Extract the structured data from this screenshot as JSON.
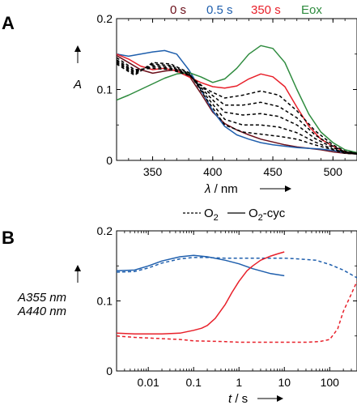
{
  "colors": {
    "dark_red": "#6b0f1a",
    "blue": "#1f5fad",
    "red": "#e8202a",
    "green": "#2e8b3e",
    "black": "#000000"
  },
  "chart_data": [
    {
      "panel": "A",
      "type": "line",
      "xlabel_symbol": "λ",
      "xlabel_unit": "/ nm",
      "ylabel": "A",
      "xlim": [
        320,
        520
      ],
      "ylim": [
        0,
        0.2
      ],
      "xticks": [
        350,
        400,
        450,
        500
      ],
      "yticks": [
        0,
        0.1,
        0.2
      ],
      "legend": [
        "0 s",
        "0.5 s",
        "350 s",
        "Eox"
      ],
      "series": [
        {
          "name": "0 s",
          "color": "#6b0f1a",
          "style": "solid",
          "x": [
            320,
            330,
            340,
            350,
            360,
            370,
            380,
            390,
            400,
            410,
            420,
            430,
            440,
            450,
            460,
            470,
            480,
            490,
            500,
            510,
            520
          ],
          "y": [
            0.148,
            0.138,
            0.128,
            0.123,
            0.126,
            0.128,
            0.12,
            0.095,
            0.068,
            0.052,
            0.043,
            0.036,
            0.03,
            0.026,
            0.022,
            0.019,
            0.017,
            0.015,
            0.012,
            0.01,
            0.009
          ]
        },
        {
          "name": "0.5 s",
          "color": "#1f5fad",
          "style": "solid",
          "x": [
            320,
            330,
            340,
            350,
            360,
            370,
            380,
            390,
            400,
            410,
            420,
            430,
            440,
            450,
            460,
            470,
            480,
            490,
            500,
            510,
            520
          ],
          "y": [
            0.15,
            0.147,
            0.15,
            0.153,
            0.155,
            0.15,
            0.128,
            0.1,
            0.07,
            0.048,
            0.036,
            0.03,
            0.025,
            0.022,
            0.02,
            0.018,
            0.017,
            0.016,
            0.014,
            0.011,
            0.01
          ]
        },
        {
          "name": "350 s",
          "color": "#e8202a",
          "style": "solid",
          "x": [
            320,
            330,
            340,
            350,
            360,
            370,
            380,
            390,
            400,
            410,
            420,
            430,
            440,
            450,
            460,
            470,
            480,
            490,
            500,
            510,
            520
          ],
          "y": [
            0.15,
            0.143,
            0.133,
            0.128,
            0.13,
            0.126,
            0.118,
            0.11,
            0.104,
            0.102,
            0.105,
            0.115,
            0.122,
            0.118,
            0.104,
            0.075,
            0.048,
            0.03,
            0.02,
            0.012,
            0.01
          ]
        },
        {
          "name": "Eox",
          "color": "#2e8b3e",
          "style": "solid",
          "x": [
            320,
            330,
            340,
            350,
            360,
            370,
            380,
            390,
            400,
            410,
            420,
            430,
            440,
            450,
            460,
            470,
            480,
            490,
            500,
            510,
            520
          ],
          "y": [
            0.085,
            0.092,
            0.1,
            0.108,
            0.116,
            0.122,
            0.124,
            0.118,
            0.11,
            0.115,
            0.13,
            0.15,
            0.162,
            0.158,
            0.138,
            0.1,
            0.065,
            0.04,
            0.025,
            0.015,
            0.011
          ]
        },
        {
          "name": "",
          "color": "#000000",
          "style": "dashed",
          "x": [
            320,
            335,
            350,
            365,
            380,
            395,
            410,
            425,
            440,
            455,
            470,
            485,
            500,
            510,
            520
          ],
          "y": [
            0.145,
            0.128,
            0.13,
            0.128,
            0.12,
            0.1,
            0.088,
            0.092,
            0.098,
            0.092,
            0.07,
            0.042,
            0.022,
            0.013,
            0.01
          ]
        },
        {
          "name": "",
          "color": "#000000",
          "style": "dashed",
          "x": [
            320,
            335,
            350,
            365,
            380,
            395,
            410,
            425,
            440,
            455,
            470,
            485,
            500,
            510,
            520
          ],
          "y": [
            0.142,
            0.126,
            0.132,
            0.13,
            0.121,
            0.098,
            0.078,
            0.078,
            0.082,
            0.076,
            0.06,
            0.036,
            0.02,
            0.012,
            0.01
          ]
        },
        {
          "name": "",
          "color": "#000000",
          "style": "dashed",
          "x": [
            320,
            335,
            350,
            365,
            380,
            395,
            410,
            425,
            440,
            455,
            470,
            485,
            500,
            510,
            520
          ],
          "y": [
            0.14,
            0.124,
            0.134,
            0.132,
            0.122,
            0.094,
            0.068,
            0.064,
            0.066,
            0.062,
            0.05,
            0.031,
            0.018,
            0.011,
            0.009
          ]
        },
        {
          "name": "",
          "color": "#000000",
          "style": "dashed",
          "x": [
            320,
            335,
            350,
            365,
            380,
            395,
            410,
            425,
            440,
            455,
            470,
            485,
            500,
            510,
            520
          ],
          "y": [
            0.138,
            0.122,
            0.136,
            0.134,
            0.123,
            0.09,
            0.058,
            0.05,
            0.05,
            0.047,
            0.039,
            0.026,
            0.016,
            0.011,
            0.009
          ]
        },
        {
          "name": "",
          "color": "#000000",
          "style": "dashed",
          "x": [
            320,
            335,
            350,
            365,
            380,
            395,
            410,
            425,
            440,
            455,
            470,
            485,
            500,
            510,
            520
          ],
          "y": [
            0.136,
            0.12,
            0.138,
            0.136,
            0.124,
            0.086,
            0.05,
            0.04,
            0.037,
            0.034,
            0.03,
            0.022,
            0.015,
            0.01,
            0.009
          ]
        }
      ]
    },
    {
      "panel": "B",
      "type": "line",
      "xscale": "log",
      "xlabel_symbol": "t",
      "xlabel_unit": "/ s",
      "ylabel_lines": [
        "A355 nm",
        "A440 nm"
      ],
      "xlim": [
        0.002,
        400
      ],
      "ylim": [
        0,
        0.2
      ],
      "xticks": [
        0.01,
        0.1,
        1,
        10,
        100
      ],
      "xtick_labels": [
        "0.01",
        "0.1",
        "1",
        "10",
        "100"
      ],
      "yticks": [
        0,
        0.1,
        0.2
      ],
      "legend_top": [
        "O2",
        "O2-cyc"
      ],
      "legend_top_display": {
        "dashed_label": "O",
        "dashed_sub": "2",
        "solid_label": "O",
        "solid_sub": "2",
        "solid_suffix": "-cyc"
      },
      "series": [
        {
          "name": "A355 nm O2-cyc",
          "color": "#1f5fad",
          "style": "solid",
          "x": [
            0.002,
            0.005,
            0.01,
            0.02,
            0.05,
            0.1,
            0.2,
            0.5,
            1,
            2,
            5,
            10
          ],
          "y": [
            0.143,
            0.144,
            0.15,
            0.157,
            0.163,
            0.165,
            0.163,
            0.158,
            0.153,
            0.146,
            0.139,
            0.136
          ]
        },
        {
          "name": "A355 nm O2",
          "color": "#1f5fad",
          "style": "dashed",
          "x": [
            0.002,
            0.005,
            0.01,
            0.02,
            0.05,
            0.1,
            0.2,
            0.5,
            1,
            2,
            5,
            10,
            20,
            50,
            100,
            200,
            400
          ],
          "y": [
            0.141,
            0.142,
            0.147,
            0.154,
            0.16,
            0.162,
            0.162,
            0.161,
            0.161,
            0.161,
            0.161,
            0.161,
            0.16,
            0.158,
            0.152,
            0.144,
            0.133
          ]
        },
        {
          "name": "A440 nm O2-cyc",
          "color": "#e8202a",
          "style": "solid",
          "x": [
            0.002,
            0.005,
            0.01,
            0.02,
            0.05,
            0.1,
            0.15,
            0.2,
            0.3,
            0.5,
            0.7,
            1,
            1.5,
            2,
            3,
            5,
            7,
            10
          ],
          "y": [
            0.054,
            0.053,
            0.053,
            0.053,
            0.054,
            0.058,
            0.061,
            0.065,
            0.075,
            0.095,
            0.112,
            0.128,
            0.143,
            0.15,
            0.158,
            0.164,
            0.167,
            0.17
          ]
        },
        {
          "name": "A440 nm O2",
          "color": "#e8202a",
          "style": "dashed",
          "x": [
            0.002,
            0.005,
            0.01,
            0.05,
            0.1,
            0.5,
            1,
            5,
            10,
            30,
            60,
            100,
            150,
            200,
            300,
            400
          ],
          "y": [
            0.05,
            0.048,
            0.047,
            0.045,
            0.043,
            0.042,
            0.041,
            0.041,
            0.041,
            0.041,
            0.042,
            0.045,
            0.06,
            0.085,
            0.11,
            0.128
          ]
        }
      ]
    }
  ]
}
